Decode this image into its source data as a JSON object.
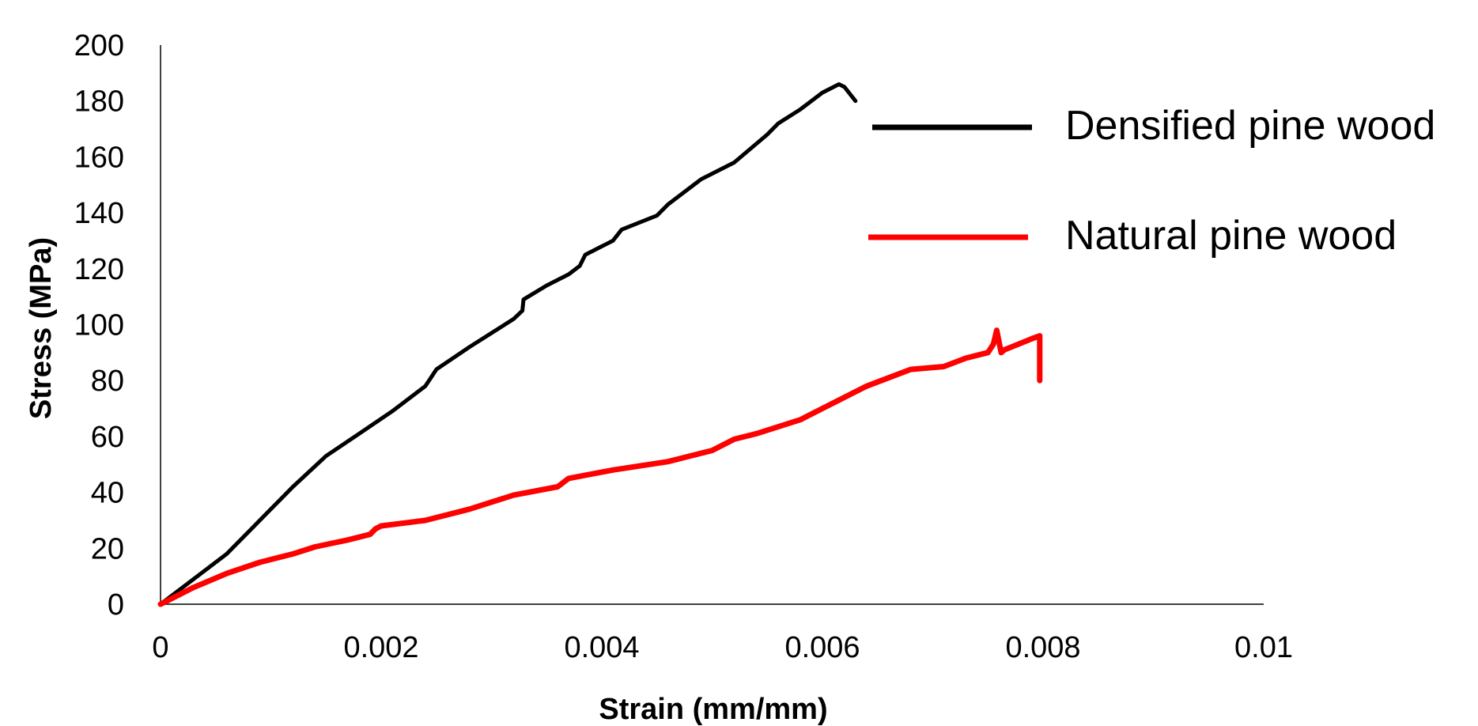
{
  "chart_data": {
    "type": "line",
    "title": "",
    "xlabel": "Strain (mm/mm)",
    "ylabel": "Stress (MPa)",
    "xlim": [
      0,
      0.01
    ],
    "ylim": [
      0,
      200
    ],
    "x_ticks": [
      0,
      0.002,
      0.004,
      0.006,
      0.008,
      0.01
    ],
    "x_tick_labels": [
      "0",
      "0.002",
      "0.004",
      "0.006",
      "0.008",
      "0.01"
    ],
    "y_ticks": [
      0,
      20,
      40,
      60,
      80,
      100,
      120,
      140,
      160,
      180,
      200
    ],
    "y_tick_labels": [
      "0",
      "20",
      "40",
      "60",
      "80",
      "100",
      "120",
      "140",
      "160",
      "180",
      "200"
    ],
    "grid": false,
    "legend": "top-right",
    "series": [
      {
        "name": "Densified pine wood",
        "color": "#000000",
        "points": [
          [
            0,
            0
          ],
          [
            0.0003,
            9
          ],
          [
            0.0006,
            18
          ],
          [
            0.0008,
            26
          ],
          [
            0.001,
            34
          ],
          [
            0.0012,
            42
          ],
          [
            0.0015,
            53
          ],
          [
            0.0018,
            61
          ],
          [
            0.0021,
            69
          ],
          [
            0.0024,
            78
          ],
          [
            0.00245,
            81
          ],
          [
            0.0025,
            84
          ],
          [
            0.0028,
            92
          ],
          [
            0.003,
            97
          ],
          [
            0.0032,
            102
          ],
          [
            0.00328,
            105
          ],
          [
            0.00329,
            109
          ],
          [
            0.0035,
            114
          ],
          [
            0.0037,
            118
          ],
          [
            0.0038,
            121
          ],
          [
            0.00385,
            125
          ],
          [
            0.0041,
            130
          ],
          [
            0.00418,
            134
          ],
          [
            0.0045,
            139
          ],
          [
            0.0046,
            143
          ],
          [
            0.0049,
            152
          ],
          [
            0.0052,
            158
          ],
          [
            0.0055,
            168
          ],
          [
            0.0056,
            172
          ],
          [
            0.0058,
            177
          ],
          [
            0.006,
            183
          ],
          [
            0.00615,
            186
          ],
          [
            0.0062,
            185
          ],
          [
            0.0063,
            180
          ]
        ]
      },
      {
        "name": "Natural pine wood",
        "color": "#ff0000",
        "points": [
          [
            0,
            0
          ],
          [
            0.0003,
            6
          ],
          [
            0.0006,
            11
          ],
          [
            0.0009,
            15
          ],
          [
            0.0012,
            18
          ],
          [
            0.0014,
            20.5
          ],
          [
            0.0017,
            23
          ],
          [
            0.0019,
            25
          ],
          [
            0.00195,
            27
          ],
          [
            0.002,
            28
          ],
          [
            0.0024,
            30
          ],
          [
            0.0028,
            34
          ],
          [
            0.0032,
            39
          ],
          [
            0.0036,
            42
          ],
          [
            0.0037,
            45
          ],
          [
            0.0041,
            48
          ],
          [
            0.0046,
            51
          ],
          [
            0.0048,
            53
          ],
          [
            0.005,
            55
          ],
          [
            0.0052,
            59
          ],
          [
            0.0054,
            61
          ],
          [
            0.0058,
            66
          ],
          [
            0.006,
            70
          ],
          [
            0.0062,
            74
          ],
          [
            0.0064,
            78
          ],
          [
            0.0066,
            81
          ],
          [
            0.0068,
            84
          ],
          [
            0.0071,
            85
          ],
          [
            0.0073,
            88
          ],
          [
            0.0075,
            90
          ],
          [
            0.00755,
            93
          ],
          [
            0.00758,
            98
          ],
          [
            0.00762,
            90
          ],
          [
            0.00765,
            91
          ],
          [
            0.0079,
            95
          ],
          [
            0.00797,
            96
          ],
          [
            0.00797,
            80
          ]
        ]
      }
    ]
  }
}
